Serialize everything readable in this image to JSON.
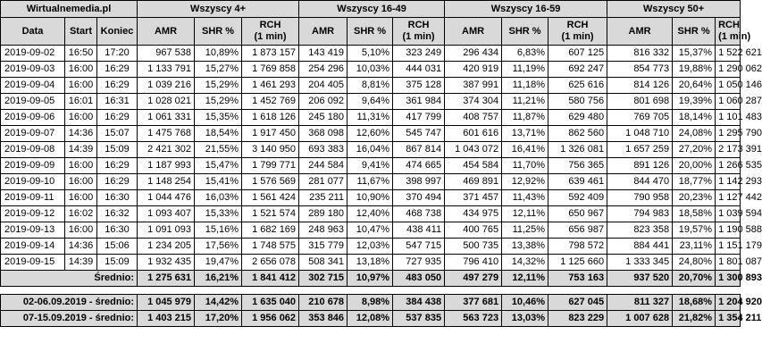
{
  "header": {
    "source": "Wirtualnemedia.pl",
    "groups": [
      "Wszyscy 4+",
      "Wszyscy 16-49",
      "Wszyscy 16-59",
      "Wszyscy 50+"
    ],
    "col_date": "Data",
    "col_start": "Start",
    "col_end": "Koniec",
    "col_amr": "AMR",
    "col_shr": "SHR %",
    "col_rch_line1": "RCH",
    "col_rch_line2": "(1 min)"
  },
  "rows": [
    {
      "date": "2019-09-02",
      "start": "16:50",
      "end": "17:20",
      "v": [
        "967 538",
        "10,89%",
        "1 873 157",
        "143 419",
        "5,10%",
        "323 249",
        "296 434",
        "6,83%",
        "607 125",
        "816 332",
        "15,37%",
        "1 522 621"
      ]
    },
    {
      "date": "2019-09-03",
      "start": "16:00",
      "end": "16:29",
      "v": [
        "1 133 791",
        "15,27%",
        "1 769 858",
        "254 296",
        "10,03%",
        "444 031",
        "420 919",
        "11,19%",
        "692 247",
        "854 773",
        "19,88%",
        "1 290 062"
      ]
    },
    {
      "date": "2019-09-04",
      "start": "16:00",
      "end": "16:29",
      "v": [
        "1 039 216",
        "15,29%",
        "1 461 293",
        "204 405",
        "8,81%",
        "375 128",
        "387 991",
        "11,18%",
        "625 616",
        "814 126",
        "20,64%",
        "1 050 146"
      ]
    },
    {
      "date": "2019-09-05",
      "start": "16:01",
      "end": "16:31",
      "v": [
        "1 028 021",
        "15,29%",
        "1 452 769",
        "206 092",
        "9,64%",
        "361 984",
        "374 304",
        "11,21%",
        "580 756",
        "801 698",
        "19,39%",
        "1 060 287"
      ]
    },
    {
      "date": "2019-09-06",
      "start": "16:00",
      "end": "16:29",
      "v": [
        "1 061 331",
        "15,35%",
        "1 618 126",
        "245 180",
        "11,31%",
        "417 799",
        "408 757",
        "11,87%",
        "629 480",
        "769 705",
        "18,14%",
        "1 101 483"
      ]
    },
    {
      "date": "2019-09-07",
      "start": "14:36",
      "end": "15:07",
      "v": [
        "1 475 768",
        "18,54%",
        "1 917 450",
        "368 098",
        "12,60%",
        "545 747",
        "601 616",
        "13,71%",
        "862 560",
        "1 048 710",
        "24,08%",
        "1 295 790"
      ]
    },
    {
      "date": "2019-09-08",
      "start": "14:39",
      "end": "15:09",
      "v": [
        "2 421 302",
        "21,55%",
        "3 140 950",
        "693 383",
        "16,04%",
        "867 814",
        "1 043 072",
        "16,41%",
        "1 326 081",
        "1 657 259",
        "27,20%",
        "2 173 391"
      ]
    },
    {
      "date": "2019-09-09",
      "start": "16:00",
      "end": "16:29",
      "v": [
        "1 187 993",
        "15,47%",
        "1 799 771",
        "244 584",
        "9,41%",
        "474 665",
        "454 584",
        "11,70%",
        "756 365",
        "891 126",
        "20,00%",
        "1 266 535"
      ]
    },
    {
      "date": "2019-09-10",
      "start": "16:00",
      "end": "16:29",
      "v": [
        "1 148 254",
        "15,41%",
        "1 576 569",
        "281 077",
        "11,67%",
        "398 997",
        "469 891",
        "12,92%",
        "639 461",
        "844 470",
        "18,77%",
        "1 142 293"
      ]
    },
    {
      "date": "2019-09-11",
      "start": "16:00",
      "end": "16:30",
      "v": [
        "1 044 476",
        "16,03%",
        "1 561 424",
        "235 211",
        "10,90%",
        "370 494",
        "371 457",
        "11,43%",
        "592 409",
        "790 958",
        "20,23%",
        "1 127 442"
      ]
    },
    {
      "date": "2019-09-12",
      "start": "16:02",
      "end": "16:32",
      "v": [
        "1 093 407",
        "15,33%",
        "1 521 574",
        "289 180",
        "12,40%",
        "468 738",
        "434 975",
        "12,11%",
        "650 967",
        "794 983",
        "18,58%",
        "1 039 594"
      ]
    },
    {
      "date": "2019-09-13",
      "start": "16:00",
      "end": "16:30",
      "v": [
        "1 091 093",
        "15,16%",
        "1 682 169",
        "248 963",
        "10,47%",
        "438 411",
        "400 765",
        "11,25%",
        "656 987",
        "823 358",
        "19,57%",
        "1 190 588"
      ]
    },
    {
      "date": "2019-09-14",
      "start": "14:36",
      "end": "15:06",
      "v": [
        "1 234 205",
        "17,56%",
        "1 748 575",
        "315 779",
        "12,03%",
        "547 715",
        "500 735",
        "13,38%",
        "798 572",
        "884 441",
        "23,11%",
        "1 151 179"
      ]
    },
    {
      "date": "2019-09-15",
      "start": "14:39",
      "end": "15:09",
      "v": [
        "1 932 435",
        "19,47%",
        "2 656 078",
        "508 341",
        "13,18%",
        "727 935",
        "796 410",
        "14,32%",
        "1 125 660",
        "1 333 345",
        "24,80%",
        "1 801 087"
      ]
    }
  ],
  "average": {
    "label": "Średnio:",
    "v": [
      "1 275 631",
      "16,21%",
      "1 841 412",
      "302 715",
      "10,97%",
      "483 050",
      "497 279",
      "12,11%",
      "753 163",
      "937 520",
      "20,70%",
      "1 300 893"
    ]
  },
  "summaries": [
    {
      "label": "02-06.09.2019 - średnio:",
      "v": [
        "1 045 979",
        "14,42%",
        "1 635 040",
        "210 678",
        "8,98%",
        "384 438",
        "377 681",
        "10,46%",
        "627 045",
        "811 327",
        "18,68%",
        "1 204 920"
      ]
    },
    {
      "label": "07-15.09.2019 - średnio:",
      "v": [
        "1 403 215",
        "17,20%",
        "1 956 062",
        "353 846",
        "12,08%",
        "537 835",
        "563 723",
        "13,03%",
        "823 229",
        "1 007 628",
        "21,82%",
        "1 354 211"
      ]
    }
  ]
}
